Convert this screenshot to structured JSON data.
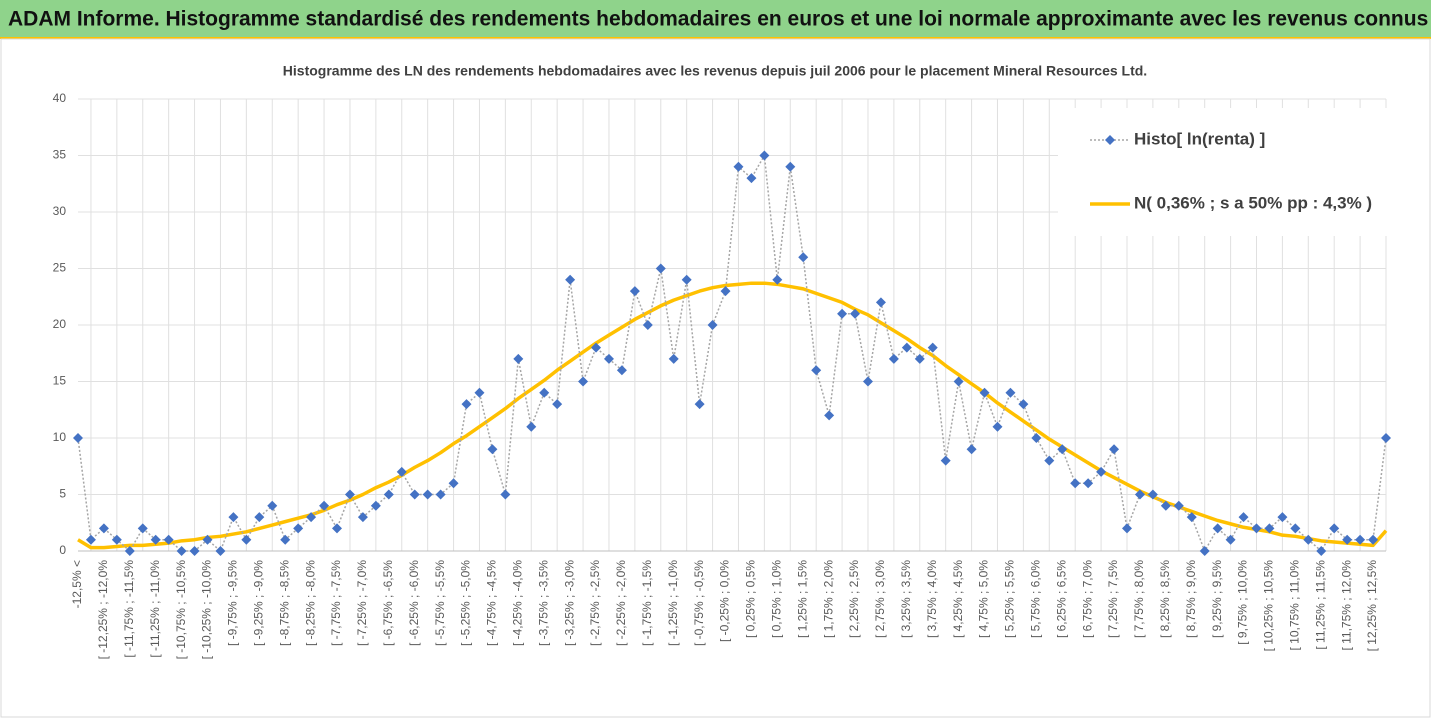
{
  "header": {
    "title": "ADAM Informe. Histogramme standardisé des rendements hebdomadaires en euros et une loi normale approximante avec les revenus connus distribués"
  },
  "chart_data": {
    "type": "line",
    "title": "Histogramme  des LN des rendements hebdomadaires avec les revenus depuis juil 2006 pour le placement Mineral Resources Ltd.",
    "categories": [
      "-12,5% <",
      null,
      "[ -12,25% ; -12,0%",
      null,
      "[ -11,75% ; -11,5%",
      null,
      "[ -11,25% ; -11,0%",
      null,
      "[ -10,75% ; -10,5%",
      null,
      "[ -10,25% ; -10,0%",
      null,
      "[ -9,75% ; -9,5%",
      null,
      "[ -9,25% ; -9,0%",
      null,
      "[ -8,75% ; -8,5%",
      null,
      "[ -8,25% ; -8,0%",
      null,
      "[ -7,75% ; -7,5%",
      null,
      "[ -7,25% ; -7,0%",
      null,
      "[ -6,75% ; -6,5%",
      null,
      "[ -6,25% ; -6,0%",
      null,
      "[ -5,75% ; -5,5%",
      null,
      "[ -5,25% ; -5,0%",
      null,
      "[ -4,75% ; -4,5%",
      null,
      "[ -4,25% ; -4,0%",
      null,
      "[ -3,75% ; -3,5%",
      null,
      "[ -3,25% ; -3,0%",
      null,
      "[ -2,75% ; -2,5%",
      null,
      "[ -2,25% ; -2,0%",
      null,
      "[ -1,75% ; -1,5%",
      null,
      "[ -1,25% ; -1,0%",
      null,
      "[ -0,75% ; -0,5%",
      null,
      "[ -0,25% ; 0,0%",
      null,
      "[ 0,25% ; 0,5%",
      null,
      "[ 0,75% ; 1,0%",
      null,
      "[ 1,25% ; 1,5%",
      null,
      "[ 1,75% ; 2,0%",
      null,
      "[ 2,25% ; 2,5%",
      null,
      "[ 2,75% ; 3,0%",
      null,
      "[ 3,25% ; 3,5%",
      null,
      "[ 3,75% ; 4,0%",
      null,
      "[ 4,25% ; 4,5%",
      null,
      "[ 4,75% ; 5,0%",
      null,
      "[ 5,25% ; 5,5%",
      null,
      "[ 5,75% ; 6,0%",
      null,
      "[ 6,25% ; 6,5%",
      null,
      "[ 6,75% ; 7,0%",
      null,
      "[ 7,25% ; 7,5%",
      null,
      "[ 7,75% ; 8,0%",
      null,
      "[ 8,25% ; 8,5%",
      null,
      "[ 8,75% ; 9,0%",
      null,
      "[ 9,25% ; 9,5%",
      null,
      "[ 9,75% ; 10,0%",
      null,
      "[ 10,25% ; 10,5%",
      null,
      "[ 10,75% ; 11,0%",
      null,
      "[ 11,25% ; 11,5%",
      null,
      "[ 11,75% ; 12,0%",
      null,
      "[ 12,25% ; 12,5%",
      null
    ],
    "series": [
      {
        "name": "Histo[ ln(renta) ]",
        "color": "#4472c4",
        "line_color": "#a6a6a6",
        "marker": "diamond",
        "values": [
          10,
          1,
          2,
          1,
          0,
          2,
          1,
          1,
          0,
          0,
          1,
          0,
          3,
          1,
          3,
          4,
          1,
          2,
          3,
          4,
          2,
          5,
          3,
          4,
          5,
          7,
          5,
          5,
          5,
          6,
          13,
          14,
          9,
          5,
          17,
          11,
          14,
          13,
          24,
          15,
          18,
          17,
          16,
          23,
          20,
          25,
          17,
          24,
          13,
          20,
          23,
          34,
          33,
          35,
          24,
          34,
          26,
          16,
          12,
          21,
          21,
          15,
          22,
          17,
          18,
          17,
          18,
          8,
          15,
          9,
          14,
          11,
          14,
          13,
          10,
          8,
          9,
          6,
          6,
          7,
          9,
          2,
          5,
          5,
          4,
          4,
          3,
          0,
          2,
          1,
          3,
          2,
          2,
          3,
          2,
          1,
          0,
          2,
          1,
          1,
          1,
          10
        ]
      },
      {
        "name": "N( 0,36% ; s a 50% pp : 4,3% )",
        "color": "#ffc000",
        "values": [
          1.0,
          0.3,
          0.3,
          0.4,
          0.5,
          0.5,
          0.6,
          0.7,
          0.9,
          1.0,
          1.2,
          1.3,
          1.5,
          1.7,
          2.0,
          2.3,
          2.6,
          2.9,
          3.2,
          3.6,
          4.1,
          4.5,
          5.0,
          5.6,
          6.1,
          6.7,
          7.4,
          8.0,
          8.7,
          9.5,
          10.2,
          11.0,
          11.8,
          12.6,
          13.5,
          14.3,
          15.1,
          16.0,
          16.8,
          17.6,
          18.4,
          19.1,
          19.8,
          20.5,
          21.1,
          21.7,
          22.2,
          22.6,
          23.0,
          23.3,
          23.5,
          23.6,
          23.7,
          23.7,
          23.6,
          23.4,
          23.2,
          22.8,
          22.4,
          22.0,
          21.4,
          20.9,
          20.2,
          19.5,
          18.8,
          18.0,
          17.3,
          16.4,
          15.6,
          14.8,
          14.0,
          13.1,
          12.3,
          11.5,
          10.7,
          9.9,
          9.2,
          8.5,
          7.8,
          7.1,
          6.5,
          5.9,
          5.3,
          4.8,
          4.3,
          3.9,
          3.5,
          3.1,
          2.7,
          2.4,
          2.1,
          1.9,
          1.7,
          1.4,
          1.3,
          1.1,
          0.9,
          0.8,
          0.7,
          0.6,
          0.5,
          1.8
        ]
      }
    ],
    "ylim": [
      0,
      40
    ],
    "yticks": [
      0,
      5,
      10,
      15,
      20,
      25,
      30,
      35,
      40
    ],
    "grid": true,
    "legend": "top-right"
  }
}
